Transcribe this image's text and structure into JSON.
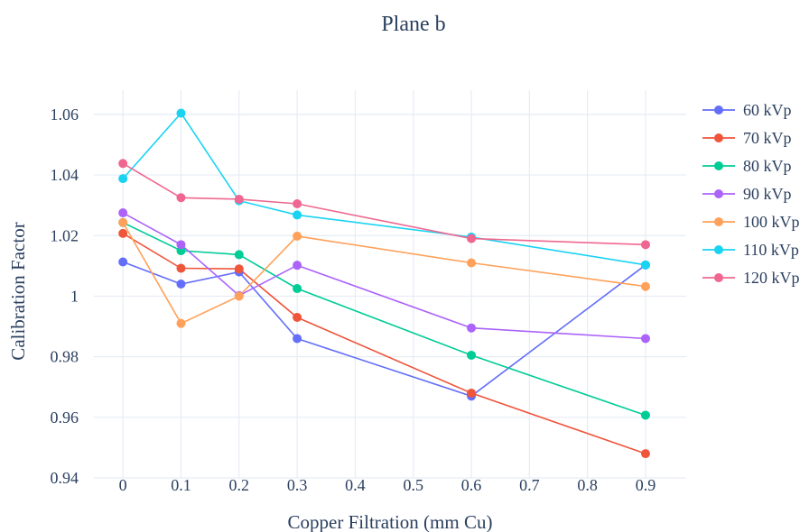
{
  "chart_data": {
    "type": "line",
    "title": "Plane b",
    "xlabel": "Copper Filtration (mm Cu)",
    "ylabel": "Calibration Factor",
    "xlim": [
      -0.05,
      0.97
    ],
    "ylim": [
      0.94,
      1.068
    ],
    "x_ticks": [
      0,
      0.1,
      0.2,
      0.3,
      0.4,
      0.5,
      0.6,
      0.7,
      0.8,
      0.9
    ],
    "x_tick_labels": [
      "0",
      "0.1",
      "0.2",
      "0.3",
      "0.4",
      "0.5",
      "0.6",
      "0.7",
      "0.8",
      "0.9"
    ],
    "y_ticks": [
      0.94,
      0.96,
      0.98,
      1.0,
      1.02,
      1.04,
      1.06
    ],
    "y_tick_labels": [
      "0.94",
      "0.96",
      "0.98",
      "1",
      "1.02",
      "1.04",
      "1.06"
    ],
    "grid": true,
    "legend_position": "right",
    "x": [
      0,
      0.1,
      0.2,
      0.3,
      0.6,
      0.9
    ],
    "series": [
      {
        "name": "60 kVp",
        "color": "#636efa",
        "values": [
          1.0113,
          1.004,
          1.008,
          0.986,
          0.967,
          1.0103
        ]
      },
      {
        "name": "70 kVp",
        "color": "#ef553b",
        "values": [
          1.0207,
          1.0092,
          1.009,
          0.993,
          0.968,
          0.948
        ]
      },
      {
        "name": "80 kVp",
        "color": "#00cc96",
        "values": [
          1.0243,
          1.015,
          1.0137,
          1.0025,
          0.9805,
          0.9607
        ]
      },
      {
        "name": "90 kVp",
        "color": "#ab63fa",
        "values": [
          1.0275,
          1.017,
          1.0002,
          1.0102,
          0.9895,
          0.986
        ]
      },
      {
        "name": "100 kVp",
        "color": "#ffa15a",
        "values": [
          1.0243,
          0.991,
          1.0,
          1.0198,
          1.011,
          1.0032
        ]
      },
      {
        "name": "110 kVp",
        "color": "#19d3f3",
        "values": [
          1.0388,
          1.0604,
          1.0315,
          1.0268,
          1.0195,
          1.0103
        ]
      },
      {
        "name": "120 kVp",
        "color": "#ef6790",
        "values": [
          1.0438,
          1.0325,
          1.032,
          1.0305,
          1.019,
          1.017
        ]
      }
    ]
  }
}
